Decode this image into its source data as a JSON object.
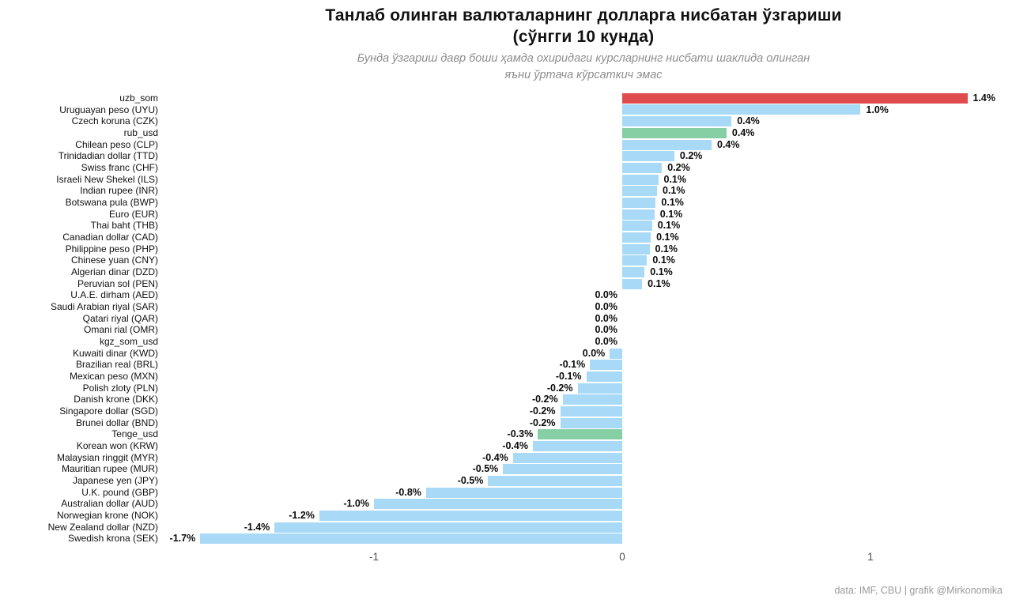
{
  "title": {
    "line1": "Танлаб олинган валюталарнинг  долларга нисбатан ўзгариши",
    "line2": "(сўнгги 10 кунда)"
  },
  "subtitle": {
    "line1": "Бунда ўзгариш давр боши ҳамда охиридаги  курсларнинг нисбати шаклида олинган",
    "line2": "яъни ўртача кўрсаткич эмас"
  },
  "footer": {
    "credit": "data: IMF, CBU | grafik @Mirkonomika"
  },
  "colors": {
    "blue": "#a8d9f7",
    "red": "#e04b4e",
    "green": "#86cfa5"
  },
  "chart_data": {
    "type": "bar",
    "orientation": "horizontal",
    "title": "Танлаб олинган валюталарнинг долларга нисбатан ўзгариши (сўнгги 10 кунда)",
    "subtitle": "Бунда ўзгариш давр боши ҳамда охиридаги курсларнинг нисбати шаклида олинган яъни ўртача кўрсаткич эмас",
    "xlabel": "",
    "ylabel": "",
    "xlim": [
      -1.9,
      1.6
    ],
    "grid": false,
    "legend": false,
    "x_ticks": [
      {
        "label": "-1",
        "value": -1
      },
      {
        "label": "0",
        "value": 0
      },
      {
        "label": "1",
        "value": 1
      }
    ],
    "bars": [
      {
        "category": "uzb_som",
        "value": 1.39,
        "label": "1.4%",
        "color": "red"
      },
      {
        "category": "Uruguayan peso (UYU)",
        "value": 0.96,
        "label": "1.0%",
        "color": "blue"
      },
      {
        "category": "Czech koruna (CZK)",
        "value": 0.44,
        "label": "0.4%",
        "color": "blue"
      },
      {
        "category": "rub_usd",
        "value": 0.42,
        "label": "0.4%",
        "color": "green"
      },
      {
        "category": "Chilean peso (CLP)",
        "value": 0.36,
        "label": "0.4%",
        "color": "blue"
      },
      {
        "category": "Trinidadian dollar (TTD)",
        "value": 0.21,
        "label": "0.2%",
        "color": "blue"
      },
      {
        "category": "Swiss franc (CHF)",
        "value": 0.16,
        "label": "0.2%",
        "color": "blue"
      },
      {
        "category": "Israeli New Shekel (ILS)",
        "value": 0.145,
        "label": "0.1%",
        "color": "blue"
      },
      {
        "category": "Indian rupee (INR)",
        "value": 0.14,
        "label": "0.1%",
        "color": "blue"
      },
      {
        "category": "Botswana pula (BWP)",
        "value": 0.135,
        "label": "0.1%",
        "color": "blue"
      },
      {
        "category": "Euro (EUR)",
        "value": 0.13,
        "label": "0.1%",
        "color": "blue"
      },
      {
        "category": "Thai baht (THB)",
        "value": 0.12,
        "label": "0.1%",
        "color": "blue"
      },
      {
        "category": "Canadian dollar (CAD)",
        "value": 0.115,
        "label": "0.1%",
        "color": "blue"
      },
      {
        "category": "Philippine peso (PHP)",
        "value": 0.11,
        "label": "0.1%",
        "color": "blue"
      },
      {
        "category": "Chinese yuan (CNY)",
        "value": 0.1,
        "label": "0.1%",
        "color": "blue"
      },
      {
        "category": "Algerian dinar (DZD)",
        "value": 0.09,
        "label": "0.1%",
        "color": "blue"
      },
      {
        "category": "Peruvian sol (PEN)",
        "value": 0.08,
        "label": "0.1%",
        "color": "blue"
      },
      {
        "category": "U.A.E. dirham (AED)",
        "value": 0.0,
        "label": "0.0%",
        "color": "blue"
      },
      {
        "category": "Saudi Arabian riyal (SAR)",
        "value": 0.0,
        "label": "0.0%",
        "color": "blue"
      },
      {
        "category": "Qatari riyal (QAR)",
        "value": 0.0,
        "label": "0.0%",
        "color": "blue"
      },
      {
        "category": "Omani rial (OMR)",
        "value": 0.0,
        "label": "0.0%",
        "color": "blue"
      },
      {
        "category": "kgz_som_usd",
        "value": 0.0,
        "label": "0.0%",
        "color": "blue"
      },
      {
        "category": "Kuwaiti dinar (KWD)",
        "value": -0.05,
        "label": "0.0%",
        "color": "blue"
      },
      {
        "category": "Brazilian real (BRL)",
        "value": -0.13,
        "label": "-0.1%",
        "color": "blue"
      },
      {
        "category": "Mexican peso (MXN)",
        "value": -0.145,
        "label": "-0.1%",
        "color": "blue"
      },
      {
        "category": "Polish zloty (PLN)",
        "value": -0.18,
        "label": "-0.2%",
        "color": "blue"
      },
      {
        "category": "Danish krone (DKK)",
        "value": -0.24,
        "label": "-0.2%",
        "color": "blue"
      },
      {
        "category": "Singapore dollar (SGD)",
        "value": -0.25,
        "label": "-0.2%",
        "color": "blue"
      },
      {
        "category": "Brunei dollar (BND)",
        "value": -0.25,
        "label": "-0.2%",
        "color": "blue"
      },
      {
        "category": "Tenge_usd",
        "value": -0.34,
        "label": "-0.3%",
        "color": "green"
      },
      {
        "category": "Korean won (KRW)",
        "value": -0.36,
        "label": "-0.4%",
        "color": "blue"
      },
      {
        "category": "Malaysian ringgit (MYR)",
        "value": -0.44,
        "label": "-0.4%",
        "color": "blue"
      },
      {
        "category": "Mauritian rupee (MUR)",
        "value": -0.48,
        "label": "-0.5%",
        "color": "blue"
      },
      {
        "category": "Japanese yen (JPY)",
        "value": -0.54,
        "label": "-0.5%",
        "color": "blue"
      },
      {
        "category": "U.K. pound (GBP)",
        "value": -0.79,
        "label": "-0.8%",
        "color": "blue"
      },
      {
        "category": "Australian dollar (AUD)",
        "value": -1.0,
        "label": "-1.0%",
        "color": "blue"
      },
      {
        "category": "Norwegian krone (NOK)",
        "value": -1.22,
        "label": "-1.2%",
        "color": "blue"
      },
      {
        "category": "New Zealand dollar (NZD)",
        "value": -1.4,
        "label": "-1.4%",
        "color": "blue"
      },
      {
        "category": "Swedish krona (SEK)",
        "value": -1.7,
        "label": "-1.7%",
        "color": "blue"
      }
    ]
  }
}
